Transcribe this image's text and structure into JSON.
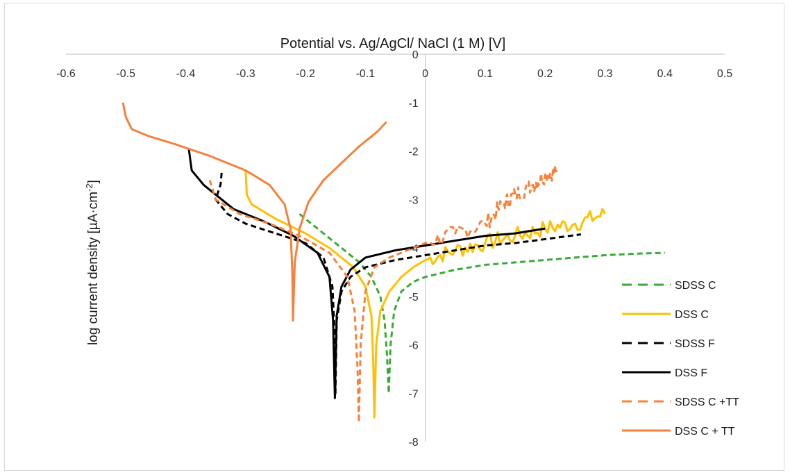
{
  "chart_data": {
    "type": "line",
    "title": "Potential vs. Ag/AgCl/ NaCl (1 M) [V]",
    "xlabel": "",
    "ylabel_main": "log current density [µA·cm",
    "ylabel_sup": "-2",
    "ylabel_end": "]",
    "xlim": [
      -0.6,
      0.5
    ],
    "ylim": [
      -8,
      0
    ],
    "x_ticks": [
      "-0.6",
      "-0.5",
      "-0.4",
      "-0.3",
      "-0.2",
      "-0.1",
      "0",
      "0.1",
      "0.2",
      "0.3",
      "0.4",
      "0.5"
    ],
    "y_ticks": [
      "0",
      "-1",
      "-2",
      "-3",
      "-4",
      "-5",
      "-6",
      "-7",
      "-8"
    ],
    "legend_position": "right",
    "series": [
      {
        "name": "SDSS C",
        "color": "#3aaa35",
        "dash": true,
        "points": [
          [
            -0.21,
            -3.3
          ],
          [
            -0.18,
            -3.6
          ],
          [
            -0.14,
            -4.0
          ],
          [
            -0.11,
            -4.3
          ],
          [
            -0.09,
            -4.6
          ],
          [
            -0.075,
            -5.0
          ],
          [
            -0.068,
            -5.5
          ],
          [
            -0.064,
            -6.2
          ],
          [
            -0.061,
            -7.0
          ],
          [
            -0.058,
            -6.0
          ],
          [
            -0.052,
            -5.3
          ],
          [
            -0.04,
            -4.9
          ],
          [
            -0.02,
            -4.7
          ],
          [
            0.0,
            -4.6
          ],
          [
            0.05,
            -4.45
          ],
          [
            0.1,
            -4.35
          ],
          [
            0.15,
            -4.3
          ],
          [
            0.2,
            -4.25
          ],
          [
            0.25,
            -4.2
          ],
          [
            0.3,
            -4.15
          ],
          [
            0.35,
            -4.12
          ],
          [
            0.4,
            -4.1
          ]
        ]
      },
      {
        "name": "DSS C",
        "color": "#ffc000",
        "dash": false,
        "points": [
          [
            -0.3,
            -2.4
          ],
          [
            -0.298,
            -2.9
          ],
          [
            -0.29,
            -3.1
          ],
          [
            -0.25,
            -3.4
          ],
          [
            -0.2,
            -3.7
          ],
          [
            -0.16,
            -4.0
          ],
          [
            -0.12,
            -4.4
          ],
          [
            -0.1,
            -4.8
          ],
          [
            -0.09,
            -5.4
          ],
          [
            -0.087,
            -6.3
          ],
          [
            -0.085,
            -7.5
          ],
          [
            -0.082,
            -6.0
          ],
          [
            -0.075,
            -5.3
          ],
          [
            -0.06,
            -4.9
          ],
          [
            -0.04,
            -4.6
          ],
          [
            -0.02,
            -4.4
          ],
          [
            0.0,
            -4.25
          ],
          [
            0.05,
            -4.05
          ],
          [
            0.1,
            -3.9
          ],
          [
            0.15,
            -3.75
          ],
          [
            0.2,
            -3.6
          ],
          [
            0.25,
            -3.5
          ],
          [
            0.3,
            -3.3
          ]
        ],
        "noise_from": 0.0
      },
      {
        "name": "SDSS F",
        "color": "#000000",
        "dash": true,
        "points": [
          [
            -0.34,
            -2.45
          ],
          [
            -0.342,
            -2.7
          ],
          [
            -0.35,
            -3.0
          ],
          [
            -0.33,
            -3.3
          ],
          [
            -0.3,
            -3.5
          ],
          [
            -0.25,
            -3.7
          ],
          [
            -0.2,
            -3.9
          ],
          [
            -0.17,
            -4.2
          ],
          [
            -0.155,
            -4.8
          ],
          [
            -0.152,
            -5.6
          ],
          [
            -0.15,
            -7.0
          ],
          [
            -0.148,
            -5.5
          ],
          [
            -0.14,
            -4.9
          ],
          [
            -0.125,
            -4.6
          ],
          [
            -0.1,
            -4.4
          ],
          [
            -0.05,
            -4.25
          ],
          [
            0.0,
            -4.15
          ],
          [
            0.05,
            -4.05
          ],
          [
            0.1,
            -3.95
          ],
          [
            0.15,
            -3.9
          ],
          [
            0.2,
            -3.82
          ],
          [
            0.26,
            -3.72
          ]
        ]
      },
      {
        "name": "DSS F",
        "color": "#000000",
        "dash": false,
        "points": [
          [
            -0.395,
            -1.95
          ],
          [
            -0.39,
            -2.4
          ],
          [
            -0.37,
            -2.7
          ],
          [
            -0.35,
            -2.9
          ],
          [
            -0.32,
            -3.2
          ],
          [
            -0.27,
            -3.45
          ],
          [
            -0.22,
            -3.75
          ],
          [
            -0.18,
            -4.1
          ],
          [
            -0.16,
            -4.6
          ],
          [
            -0.154,
            -5.5
          ],
          [
            -0.151,
            -7.1
          ],
          [
            -0.148,
            -5.4
          ],
          [
            -0.14,
            -4.8
          ],
          [
            -0.125,
            -4.45
          ],
          [
            -0.1,
            -4.2
          ],
          [
            -0.05,
            -4.05
          ],
          [
            0.0,
            -3.95
          ],
          [
            0.05,
            -3.85
          ],
          [
            0.1,
            -3.75
          ],
          [
            0.15,
            -3.7
          ],
          [
            0.2,
            -3.6
          ]
        ]
      },
      {
        "name": "SDSS C +TT",
        "color": "#f5813a",
        "dash": true,
        "points": [
          [
            -0.36,
            -2.6
          ],
          [
            -0.35,
            -3.0
          ],
          [
            -0.31,
            -3.3
          ],
          [
            -0.26,
            -3.5
          ],
          [
            -0.21,
            -3.75
          ],
          [
            -0.16,
            -4.1
          ],
          [
            -0.13,
            -4.6
          ],
          [
            -0.118,
            -5.3
          ],
          [
            -0.113,
            -6.5
          ],
          [
            -0.111,
            -7.6
          ],
          [
            -0.108,
            -6.0
          ],
          [
            -0.1,
            -4.9
          ],
          [
            -0.085,
            -4.4
          ],
          [
            -0.06,
            -4.2
          ],
          [
            -0.03,
            -4.05
          ],
          [
            0.0,
            -3.9
          ],
          [
            0.05,
            -3.7
          ],
          [
            0.1,
            -3.5
          ],
          [
            0.13,
            -3.1
          ],
          [
            0.15,
            -2.9
          ],
          [
            0.18,
            -2.7
          ],
          [
            0.2,
            -2.5
          ],
          [
            0.22,
            -2.4
          ]
        ],
        "noise_from": 0.0
      },
      {
        "name": "DSS C + TT",
        "color": "#f5813a",
        "dash": false,
        "points": [
          [
            -0.505,
            -1.0
          ],
          [
            -0.5,
            -1.3
          ],
          [
            -0.49,
            -1.55
          ],
          [
            -0.46,
            -1.7
          ],
          [
            -0.42,
            -1.85
          ],
          [
            -0.36,
            -2.1
          ],
          [
            -0.3,
            -2.4
          ],
          [
            -0.26,
            -2.7
          ],
          [
            -0.235,
            -3.1
          ],
          [
            -0.225,
            -3.6
          ],
          [
            -0.222,
            -4.5
          ],
          [
            -0.221,
            -5.5
          ],
          [
            -0.218,
            -4.3
          ],
          [
            -0.21,
            -3.6
          ],
          [
            -0.195,
            -3.05
          ],
          [
            -0.17,
            -2.6
          ],
          [
            -0.14,
            -2.25
          ],
          [
            -0.11,
            -1.9
          ],
          [
            -0.08,
            -1.6
          ],
          [
            -0.065,
            -1.4
          ]
        ]
      }
    ]
  }
}
